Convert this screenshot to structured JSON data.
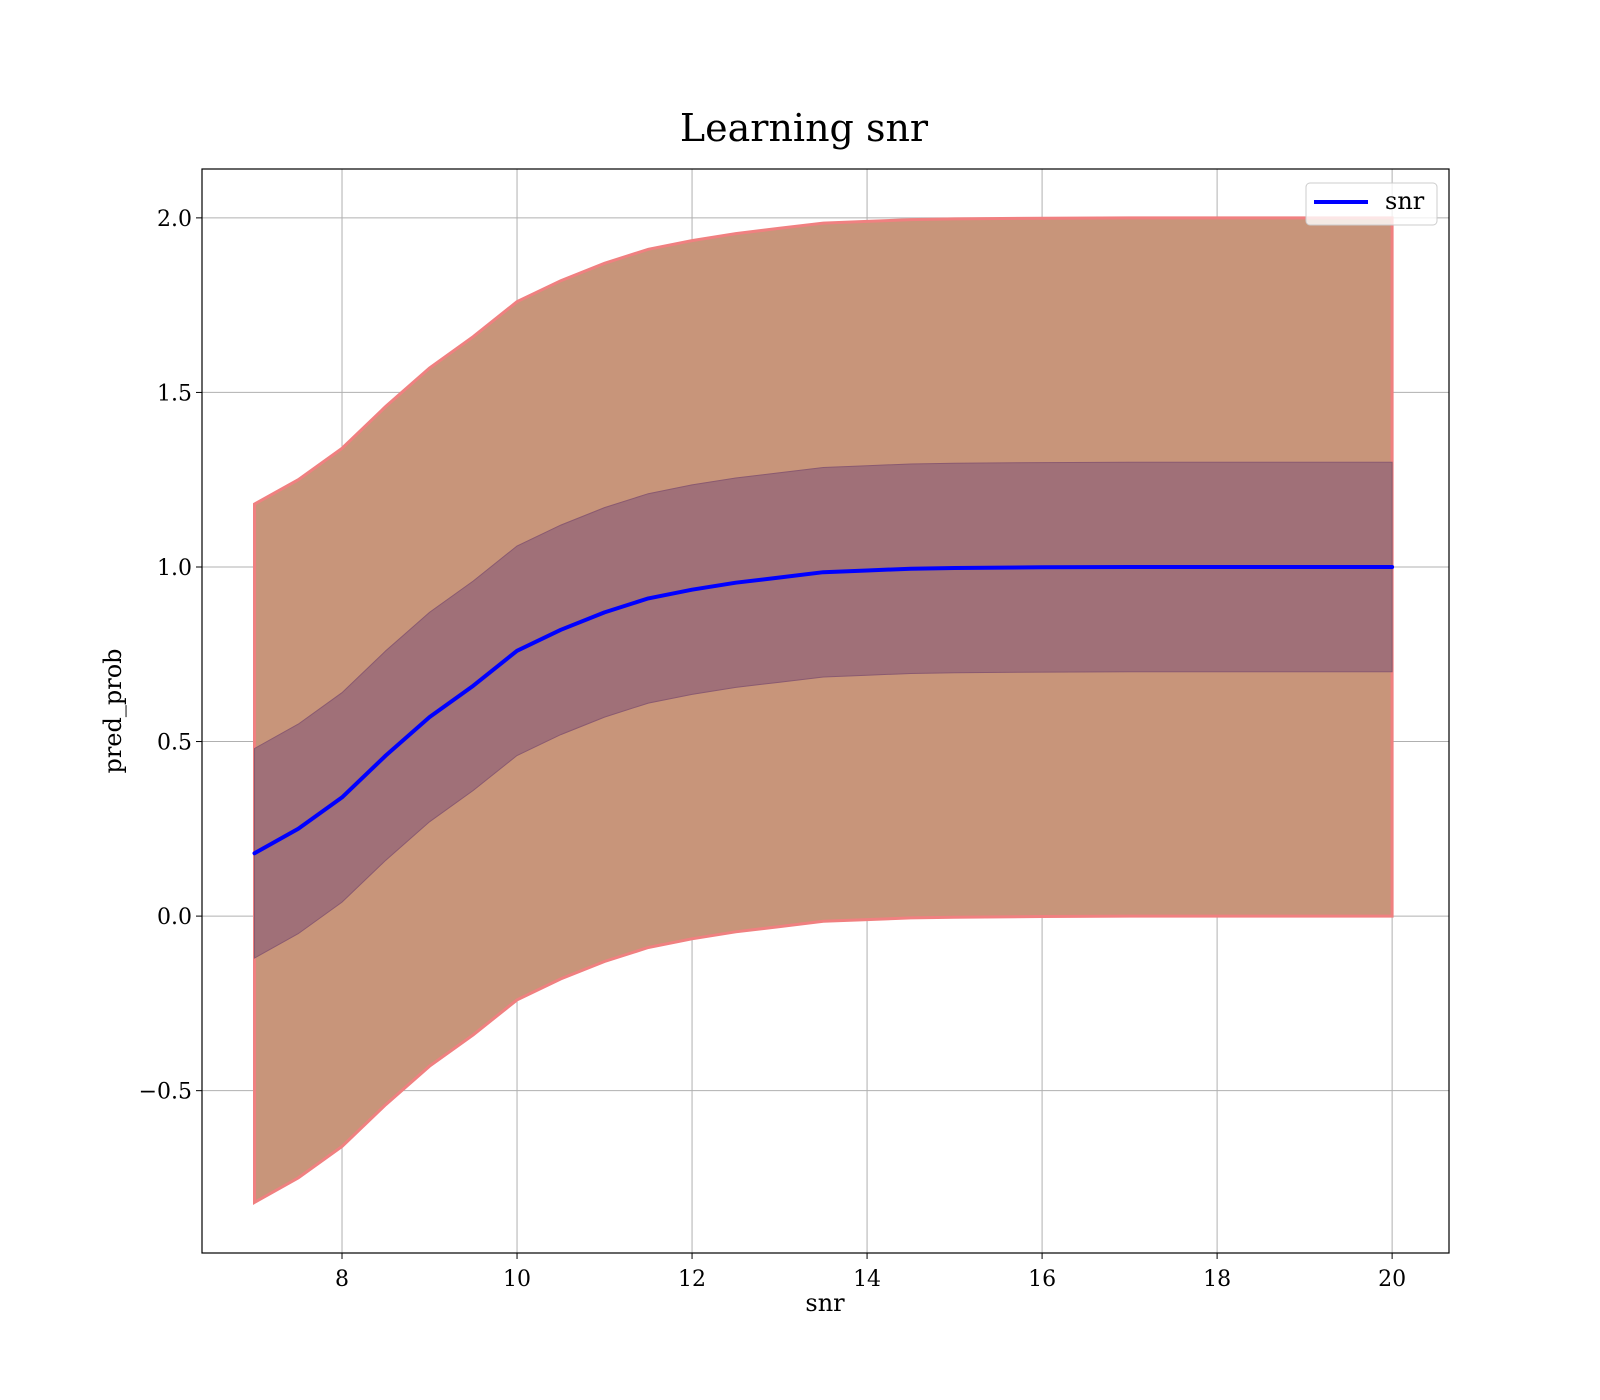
{
  "chart_data": {
    "type": "line",
    "title": "Learning snr",
    "xlabel": "snr",
    "ylabel": "pred_prob",
    "xlim": [
      6.4,
      20.65
    ],
    "ylim": [
      -0.965,
      2.14
    ],
    "xticks": [
      8,
      10,
      12,
      14,
      16,
      18,
      20
    ],
    "xtick_labels": [
      "8",
      "10",
      "12",
      "14",
      "16",
      "18",
      "20"
    ],
    "yticks": [
      -0.5,
      0.0,
      0.5,
      1.0,
      1.5,
      2.0
    ],
    "ytick_labels": [
      "−0.5",
      "0.0",
      "0.5",
      "1.0",
      "1.5",
      "2.0"
    ],
    "grid": true,
    "legend": {
      "position": "top-right",
      "entries": [
        "snr"
      ]
    },
    "colors": {
      "mean_line": "#0000ff",
      "outer_band": "#c8957a",
      "outer_band_edge": "#f08080",
      "inner_band": "#a07078",
      "grid": "#b0b0b0"
    },
    "series": [
      {
        "name": "snr",
        "x": [
          7.0,
          7.5,
          8.0,
          8.5,
          9.0,
          9.5,
          10.0,
          10.5,
          11.0,
          11.5,
          12.0,
          12.5,
          13.0,
          13.5,
          14.0,
          14.5,
          15.0,
          16.0,
          17.0,
          18.0,
          19.0,
          20.0
        ],
        "y": [
          0.18,
          0.25,
          0.34,
          0.46,
          0.57,
          0.66,
          0.76,
          0.82,
          0.87,
          0.91,
          0.935,
          0.955,
          0.97,
          0.985,
          0.99,
          0.995,
          0.997,
          0.999,
          1.0,
          1.0,
          1.0,
          1.0
        ],
        "inner_lower": [
          -0.12,
          -0.05,
          0.04,
          0.16,
          0.27,
          0.36,
          0.46,
          0.52,
          0.57,
          0.61,
          0.635,
          0.655,
          0.67,
          0.685,
          0.69,
          0.695,
          0.697,
          0.699,
          0.7,
          0.7,
          0.7,
          0.7
        ],
        "inner_upper": [
          0.48,
          0.55,
          0.64,
          0.76,
          0.87,
          0.96,
          1.06,
          1.12,
          1.17,
          1.21,
          1.235,
          1.255,
          1.27,
          1.285,
          1.29,
          1.295,
          1.297,
          1.299,
          1.3,
          1.3,
          1.3,
          1.3
        ],
        "outer_lower": [
          -0.82,
          -0.75,
          -0.66,
          -0.54,
          -0.43,
          -0.34,
          -0.24,
          -0.18,
          -0.13,
          -0.09,
          -0.065,
          -0.045,
          -0.03,
          -0.015,
          -0.01,
          -0.005,
          -0.003,
          -0.001,
          0.0,
          0.0,
          0.0,
          0.0
        ],
        "outer_upper": [
          1.18,
          1.25,
          1.34,
          1.46,
          1.57,
          1.66,
          1.76,
          1.82,
          1.87,
          1.91,
          1.935,
          1.955,
          1.97,
          1.985,
          1.99,
          1.995,
          1.997,
          1.999,
          2.0,
          2.0,
          2.0,
          2.0
        ]
      }
    ]
  }
}
